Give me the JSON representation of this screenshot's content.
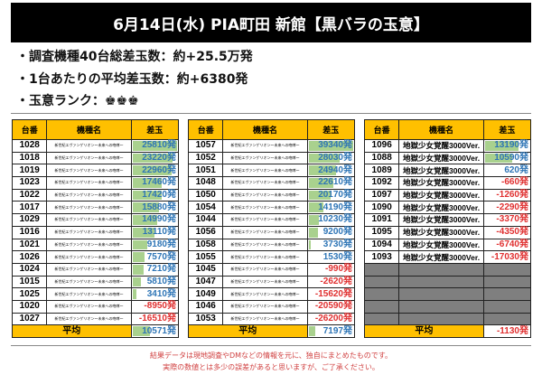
{
  "header": {
    "title": "6月14日(水) PIA町田 新館【黒バラの玉意】"
  },
  "summary": [
    "・調査機種40台総差玉数：約+25.5万発",
    "・1台あたりの平均差玉数：約+6380発",
    "・玉意ランク：♚♚♚"
  ],
  "colors": {
    "header_bg": "#000000",
    "column_header": "#ffc000",
    "bar": "#a9d18e",
    "positive": "#2e75b6",
    "negative": "#e03030",
    "empty_row": "#7f7f7f"
  },
  "tables": [
    {
      "headers": [
        "台番",
        "機種名",
        "差玉"
      ],
      "avg_label": "平均",
      "avg": "10571発",
      "avg_value": 10571,
      "max_abs": 25810,
      "empty_rows": 0,
      "rows": [
        [
          "1028",
          "新世紀エヴァンゲリオン～未来への咆哮～",
          "25810発",
          25810
        ],
        [
          "1018",
          "新世紀エヴァンゲリオン～未来への咆哮～",
          "23220発",
          23220
        ],
        [
          "1019",
          "新世紀エヴァンゲリオン～未来への咆哮～",
          "22960発",
          22960
        ],
        [
          "1023",
          "新世紀エヴァンゲリオン～未来への咆哮～",
          "17460発",
          17460
        ],
        [
          "1022",
          "新世紀エヴァンゲリオン～未来への咆哮～",
          "17420発",
          17420
        ],
        [
          "1017",
          "新世紀エヴァンゲリオン～未来への咆哮～",
          "15880発",
          15880
        ],
        [
          "1029",
          "新世紀エヴァンゲリオン～未来への咆哮～",
          "14990発",
          14990
        ],
        [
          "1016",
          "新世紀エヴァンゲリオン～未来への咆哮～",
          "13110発",
          13110
        ],
        [
          "1021",
          "新世紀エヴァンゲリオン～未来への咆哮～",
          "9180発",
          9180
        ],
        [
          "1026",
          "新世紀エヴァンゲリオン～未来への咆哮～",
          "7570発",
          7570
        ],
        [
          "1024",
          "新世紀エヴァンゲリオン～未来への咆哮～",
          "7210発",
          7210
        ],
        [
          "1015",
          "新世紀エヴァンゲリオン～未来への咆哮～",
          "5810発",
          5810
        ],
        [
          "1025",
          "新世紀エヴァンゲリオン～未来への咆哮～",
          "3410発",
          3410
        ],
        [
          "1020",
          "新世紀エヴァンゲリオン～未来への咆哮～",
          "-8950発",
          -8950
        ],
        [
          "1027",
          "新世紀エヴァンゲリオン～未来への咆哮～",
          "-16510発",
          -16510
        ]
      ]
    },
    {
      "headers": [
        "台番",
        "機種名",
        "差玉"
      ],
      "avg_label": "平均",
      "avg": "7197発",
      "avg_value": 7197,
      "max_abs": 39340,
      "empty_rows": 0,
      "rows": [
        [
          "1057",
          "新世紀エヴァンゲリオン～未来への咆哮～",
          "39340発",
          39340
        ],
        [
          "1052",
          "新世紀エヴァンゲリオン～未来への咆哮～",
          "28030発",
          28030
        ],
        [
          "1051",
          "新世紀エヴァンゲリオン～未来への咆哮～",
          "24940発",
          24940
        ],
        [
          "1048",
          "新世紀エヴァンゲリオン～未来への咆哮～",
          "22610発",
          22610
        ],
        [
          "1050",
          "新世紀エヴァンゲリオン～未来への咆哮～",
          "20170発",
          20170
        ],
        [
          "1054",
          "新世紀エヴァンゲリオン～未来への咆哮～",
          "14190発",
          14190
        ],
        [
          "1044",
          "新世紀エヴァンゲリオン～未来への咆哮～",
          "10230発",
          10230
        ],
        [
          "1056",
          "新世紀エヴァンゲリオン～未来への咆哮～",
          "9200発",
          9200
        ],
        [
          "1058",
          "新世紀エヴァンゲリオン～未来への咆哮～",
          "3730発",
          3730
        ],
        [
          "1055",
          "新世紀エヴァンゲリオン～未来への咆哮～",
          "1530発",
          1530
        ],
        [
          "1045",
          "新世紀エヴァンゲリオン～未来への咆哮～",
          "-990発",
          -990
        ],
        [
          "1047",
          "新世紀エヴァンゲリオン～未来への咆哮～",
          "-2620発",
          -2620
        ],
        [
          "1049",
          "新世紀エヴァンゲリオン～未来への咆哮～",
          "-15620発",
          -15620
        ],
        [
          "1046",
          "新世紀エヴァンゲリオン～未来への咆哮～",
          "-20590発",
          -20590
        ],
        [
          "1053",
          "新世紀エヴァンゲリオン～未来への咆哮～",
          "-26200発",
          -26200
        ]
      ]
    },
    {
      "headers": [
        "台番",
        "機種名",
        "差玉"
      ],
      "avg_label": "平均",
      "avg": "-1130発",
      "avg_value": -1130,
      "max_abs": 17030,
      "empty_rows": 5,
      "rows": [
        [
          "1096",
          "地獄少女覚醒3000Ver.",
          "13190発",
          13190
        ],
        [
          "1088",
          "地獄少女覚醒3000Ver.",
          "10590発",
          10590
        ],
        [
          "1089",
          "地獄少女覚醒3000Ver.",
          "620発",
          620
        ],
        [
          "1092",
          "地獄少女覚醒3000Ver.",
          "-660発",
          -660
        ],
        [
          "1097",
          "地獄少女覚醒3000Ver.",
          "-1260発",
          -1260
        ],
        [
          "1090",
          "地獄少女覚醒3000Ver.",
          "-2290発",
          -2290
        ],
        [
          "1091",
          "地獄少女覚醒3000Ver.",
          "-3370発",
          -3370
        ],
        [
          "1095",
          "地獄少女覚醒3000Ver.",
          "-4350発",
          -4350
        ],
        [
          "1094",
          "地獄少女覚醒3000Ver.",
          "-6740発",
          -6740
        ],
        [
          "1093",
          "地獄少女覚醒3000Ver.",
          "-17030発",
          -17030
        ]
      ]
    }
  ],
  "footer": [
    "結果データは現地調査やDMなどの情報を元に、独自にまとめたものです。",
    "実際の数値とは多少の誤差があると思いますが、ご了承ください。"
  ]
}
